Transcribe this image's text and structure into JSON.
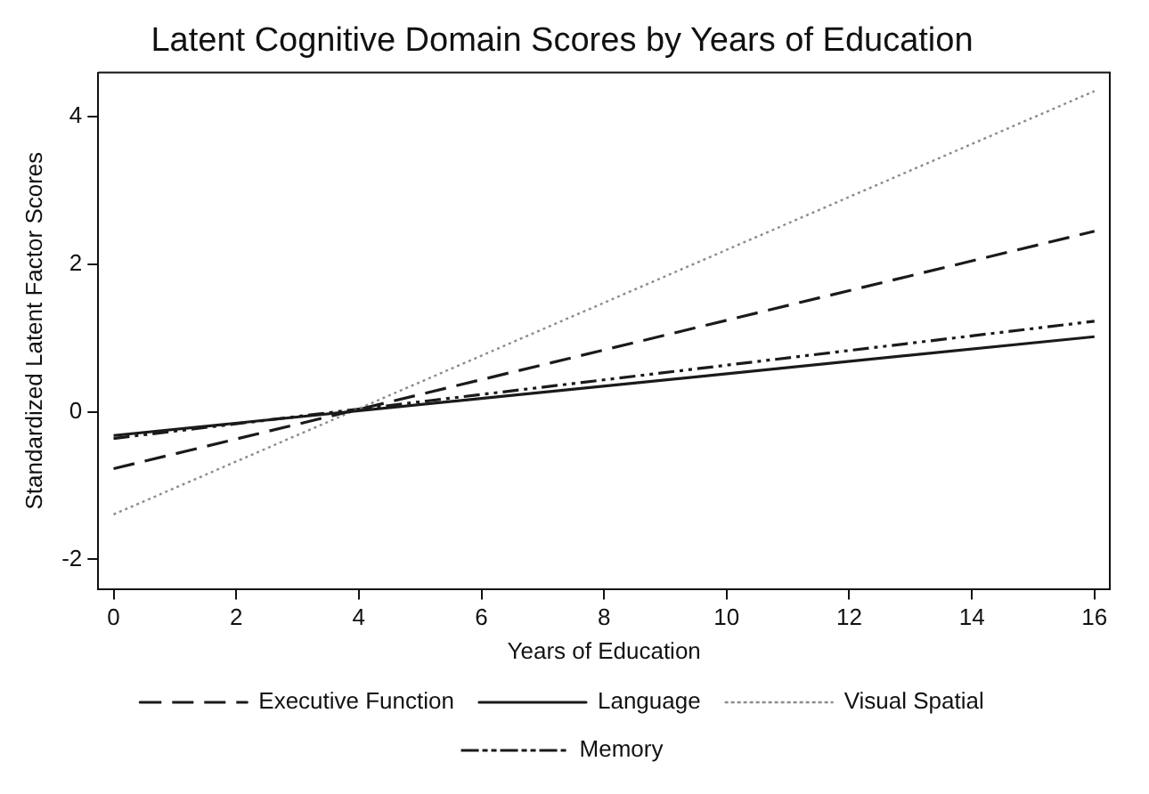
{
  "chart_data": {
    "type": "line",
    "title": "Latent Cognitive Domain Scores by Years of Education",
    "xlabel": "Years of Education",
    "ylabel": "Standardized Latent Factor Scores",
    "x": [
      0,
      16
    ],
    "series": [
      {
        "name": "Executive Function",
        "color": "#1a1a1a",
        "line_style": "dashed",
        "values": [
          -0.77,
          2.45
        ]
      },
      {
        "name": "Language",
        "color": "#1a1a1a",
        "line_style": "solid",
        "values": [
          -0.32,
          1.02
        ]
      },
      {
        "name": "Visual Spatial",
        "color": "#8c8c8c",
        "line_style": "dotted",
        "values": [
          -1.39,
          4.35
        ]
      },
      {
        "name": "Memory",
        "color": "#1a1a1a",
        "line_style": "dashdot",
        "values": [
          -0.36,
          1.23
        ]
      }
    ],
    "xlim": [
      -0.25,
      16.25
    ],
    "xticks": [
      0,
      2,
      4,
      6,
      8,
      10,
      12,
      14,
      16
    ],
    "ylim": [
      -2.4,
      4.6
    ],
    "yticks": [
      -2,
      0,
      2,
      4
    ],
    "grid": false,
    "legend": "bottom",
    "marker": "none"
  }
}
